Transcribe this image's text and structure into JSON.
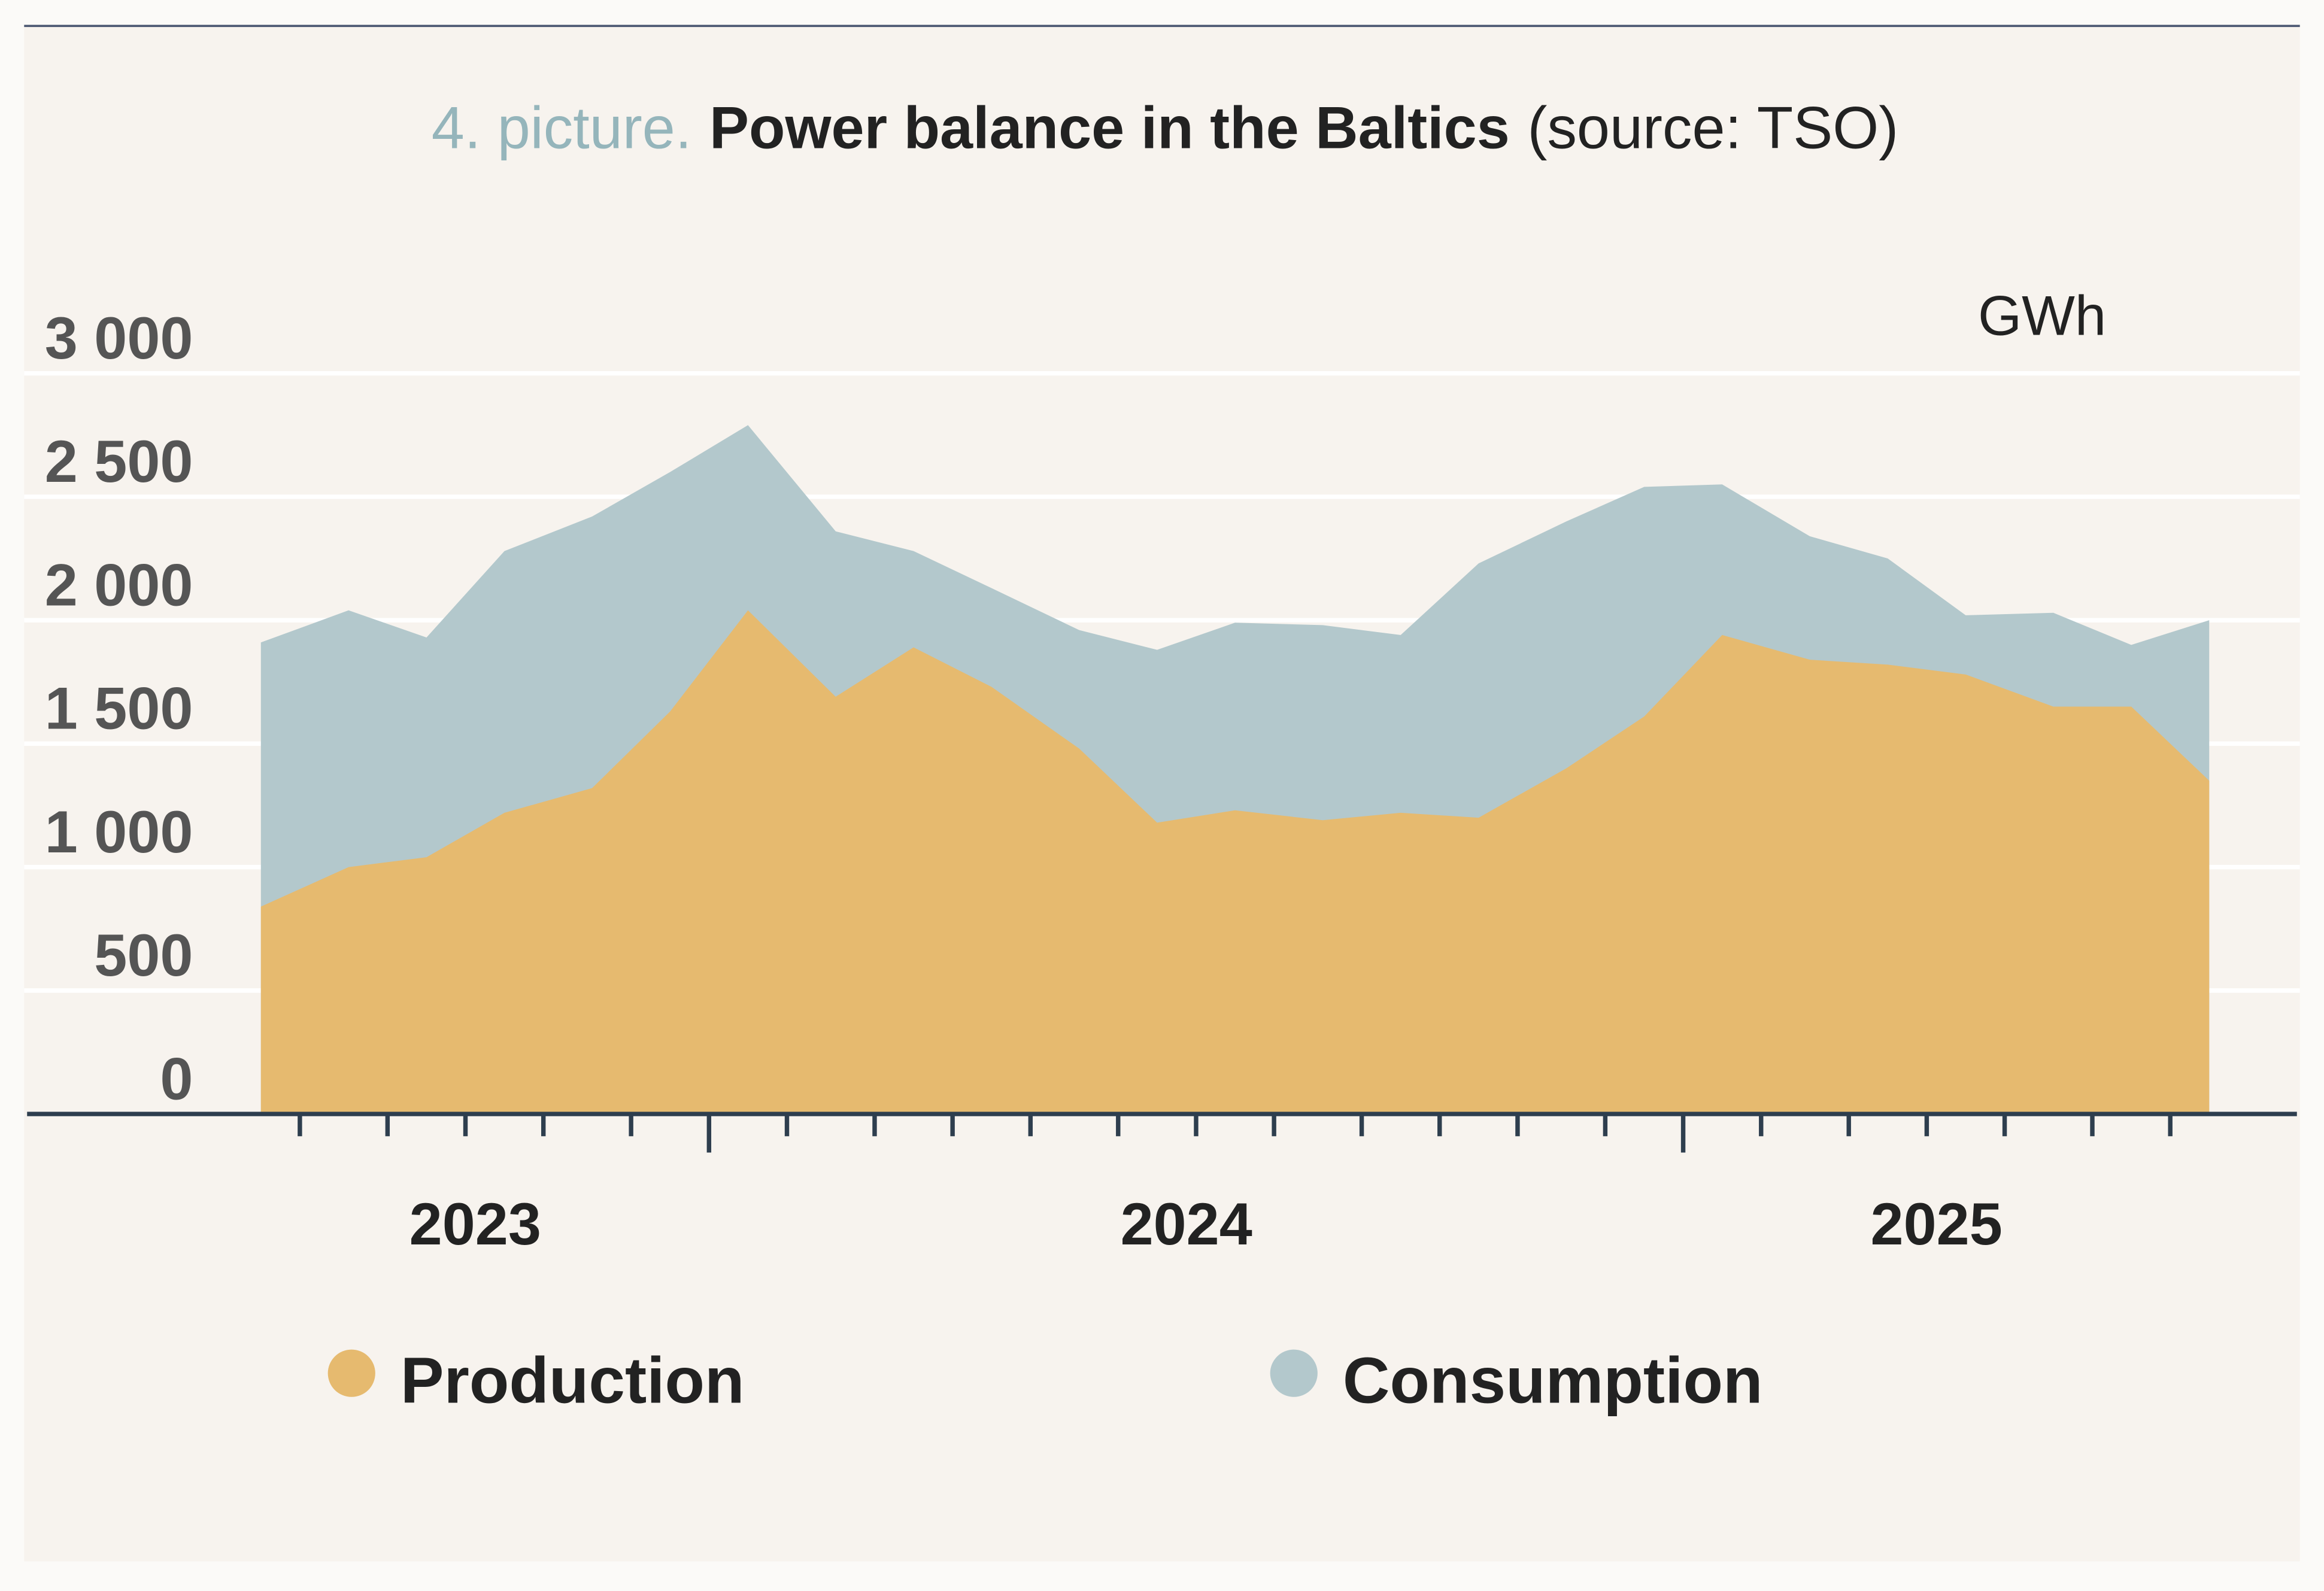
{
  "chart_data": {
    "type": "area",
    "figure_label": "4. picture.",
    "title": "Power balance in the Baltics",
    "source": "(source: TSO)",
    "unit": "GWh",
    "x": [
      2023.54,
      2023.63,
      2023.71,
      2023.79,
      2023.88,
      2023.96,
      2024.04,
      2024.13,
      2024.21,
      2024.29,
      2024.38,
      2024.46,
      2024.54,
      2024.63,
      2024.71,
      2024.79,
      2024.88,
      2024.96,
      2025.04,
      2025.13,
      2025.21,
      2025.29,
      2025.38,
      2025.46,
      2025.54
    ],
    "series": [
      {
        "name": "Production",
        "color": "#e6ba6f",
        "values": [
          840,
          1000,
          1040,
          1220,
          1320,
          1630,
          2040,
          1690,
          1890,
          1730,
          1480,
          1180,
          1230,
          1190,
          1220,
          1200,
          1400,
          1610,
          1940,
          1840,
          1820,
          1780,
          1650,
          1650,
          1350
        ]
      },
      {
        "name": "Consumption",
        "color": "#b3c8cc",
        "values": [
          1910,
          2040,
          1930,
          2280,
          2420,
          2600,
          2790,
          2360,
          2280,
          2130,
          1960,
          1880,
          1990,
          1980,
          1940,
          2230,
          2400,
          2540,
          2550,
          2340,
          2250,
          2020,
          2030,
          1900,
          2000
        ]
      }
    ],
    "xlim": [
      2023.3,
      2025.63
    ],
    "xticks": [
      {
        "value": 2023.76,
        "label": "2023"
      },
      {
        "value": 2024.49,
        "label": "2024"
      },
      {
        "value": 2025.26,
        "label": "2025"
      }
    ],
    "xminorticks": [
      2023.58,
      2023.67,
      2023.75,
      2023.83,
      2023.92,
      2024.08,
      2024.17,
      2024.25,
      2024.33,
      2024.42,
      2024.5,
      2024.58,
      2024.67,
      2024.75,
      2024.83,
      2024.92,
      2025.08,
      2025.17,
      2025.25,
      2025.33,
      2025.42,
      2025.5
    ],
    "xmajorticks": [
      2024,
      2025
    ],
    "ylim": [
      0,
      3000
    ],
    "yticks": [
      0,
      {
        "value": 500,
        "label": "500"
      },
      {
        "value": 1000,
        "label": "1 000"
      },
      {
        "value": 1500,
        "label": "1 500"
      },
      {
        "value": 2000,
        "label": "2 000"
      },
      {
        "value": 2500,
        "label": "2 500"
      },
      {
        "value": 3000,
        "label": "3 000"
      }
    ],
    "grid": true,
    "legend": "bottom"
  }
}
